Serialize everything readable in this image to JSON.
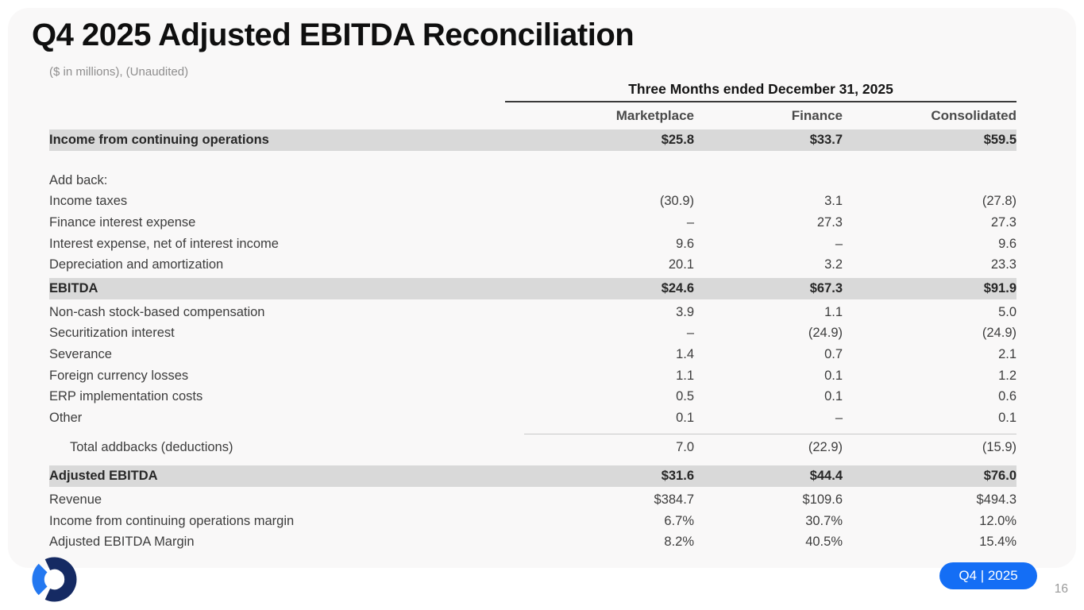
{
  "slide": {
    "title": "Q4 2025 Adjusted EBITDA Reconciliation",
    "subtitle": "($ in millions), (Unaudited)",
    "badge": "Q4 | 2025",
    "page_number": "16"
  },
  "colors": {
    "accent_blue": "#146ef5",
    "logo_navy": "#152a63",
    "logo_blue": "#2478f0",
    "row_band_gray": "#d9d9d9",
    "card_background": "#f9f8f8"
  },
  "icons": {
    "logo": "ring-logo"
  },
  "table": {
    "period_header": "Three Months ended December 31, 2025",
    "columns": [
      "Marketplace",
      "Finance",
      "Consolidated"
    ],
    "rows": [
      {
        "label": "Income from continuing operations",
        "values": [
          "$25.8",
          "$33.7",
          "$59.5"
        ],
        "band": true
      },
      {
        "label": "Add back:",
        "values": [
          "",
          "",
          ""
        ],
        "spacer_before": true
      },
      {
        "label": "Income taxes",
        "values": [
          "(30.9)",
          "3.1",
          "(27.8)"
        ]
      },
      {
        "label": "Finance interest expense",
        "values": [
          "–",
          "27.3",
          "27.3"
        ]
      },
      {
        "label": "Interest expense, net of interest income",
        "values": [
          "9.6",
          "–",
          "9.6"
        ]
      },
      {
        "label": "Depreciation and amortization",
        "values": [
          "20.1",
          "3.2",
          "23.3"
        ]
      },
      {
        "label": "EBITDA",
        "values": [
          "$24.6",
          "$67.3",
          "$91.9"
        ],
        "band": true
      },
      {
        "label": "Non-cash stock-based compensation",
        "values": [
          "3.9",
          "1.1",
          "5.0"
        ]
      },
      {
        "label": "Securitization interest",
        "values": [
          "–",
          "(24.9)",
          "(24.9)"
        ]
      },
      {
        "label": "Severance",
        "values": [
          "1.4",
          "0.7",
          "2.1"
        ]
      },
      {
        "label": "Foreign currency losses",
        "values": [
          "1.1",
          "0.1",
          "1.2"
        ]
      },
      {
        "label": "ERP implementation costs",
        "values": [
          "0.5",
          "0.1",
          "0.6"
        ]
      },
      {
        "label": "Other",
        "values": [
          "0.1",
          "–",
          "0.1"
        ]
      },
      {
        "label": "Total addbacks (deductions)",
        "values": [
          "7.0",
          "(22.9)",
          "(15.9)"
        ],
        "indent": true,
        "rule_above": true
      },
      {
        "label": "Adjusted EBITDA",
        "values": [
          "$31.6",
          "$44.4",
          "$76.0"
        ],
        "band": true,
        "spacer_small": true
      },
      {
        "label": "Revenue",
        "values": [
          "$384.7",
          "$109.6",
          "$494.3"
        ]
      },
      {
        "label": "Income from continuing operations margin",
        "values": [
          "6.7%",
          "30.7%",
          "12.0%"
        ]
      },
      {
        "label": "Adjusted EBITDA Margin",
        "values": [
          "8.2%",
          "40.5%",
          "15.4%"
        ]
      }
    ]
  }
}
